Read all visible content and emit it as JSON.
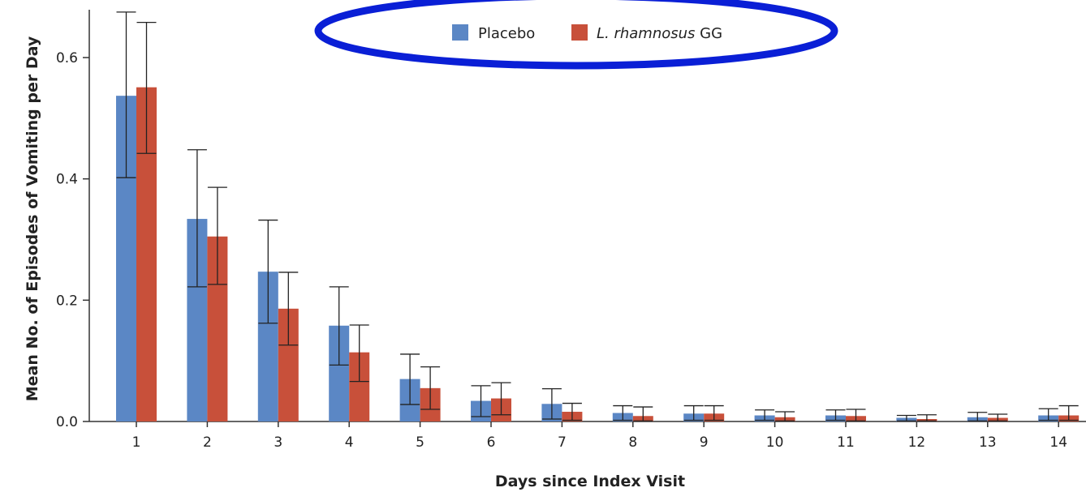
{
  "chart_data": {
    "type": "bar",
    "xlabel": "Days since Index Visit",
    "ylabel": "Mean No. of Episodes of Vomiting per Day",
    "categories": [
      "1",
      "2",
      "3",
      "4",
      "5",
      "6",
      "7",
      "8",
      "9",
      "10",
      "11",
      "12",
      "13",
      "14"
    ],
    "ylim": [
      0,
      0.68
    ],
    "yticks": [
      "0.0",
      "0.2",
      "0.4",
      "0.6"
    ],
    "ytick_values": [
      0.0,
      0.2,
      0.4,
      0.6
    ],
    "grid": false,
    "legend": {
      "placement": "top-center",
      "entries": [
        {
          "label": "Placebo",
          "italic_part": "",
          "plain_part": "Placebo"
        },
        {
          "label": "L. rhamnosus GG",
          "italic_part": "L. rhamnosus",
          "plain_part": " GG"
        }
      ],
      "highlight_color": "#0a1fd6"
    },
    "series": [
      {
        "name": "Placebo",
        "color": "#5b87c5",
        "values": [
          0.537,
          0.334,
          0.247,
          0.158,
          0.07,
          0.034,
          0.029,
          0.014,
          0.013,
          0.01,
          0.01,
          0.006,
          0.007,
          0.01
        ],
        "err_low": [
          0.402,
          0.222,
          0.162,
          0.093,
          0.028,
          0.008,
          0.004,
          0.002,
          0.002,
          0.002,
          0.002,
          0.001,
          0.001,
          0.002
        ],
        "err_high": [
          0.675,
          0.448,
          0.332,
          0.222,
          0.111,
          0.059,
          0.054,
          0.026,
          0.026,
          0.019,
          0.019,
          0.01,
          0.015,
          0.021
        ]
      },
      {
        "name": "L. rhamnosus GG",
        "color": "#c8503a",
        "values": [
          0.551,
          0.305,
          0.186,
          0.114,
          0.055,
          0.038,
          0.016,
          0.009,
          0.013,
          0.007,
          0.009,
          0.004,
          0.006,
          0.01
        ],
        "err_low": [
          0.442,
          0.226,
          0.126,
          0.066,
          0.02,
          0.011,
          0.002,
          0.001,
          0.002,
          0.001,
          0.001,
          0.001,
          0.001,
          0.002
        ],
        "err_high": [
          0.658,
          0.386,
          0.246,
          0.159,
          0.09,
          0.064,
          0.03,
          0.024,
          0.026,
          0.016,
          0.02,
          0.011,
          0.012,
          0.026
        ]
      }
    ]
  }
}
